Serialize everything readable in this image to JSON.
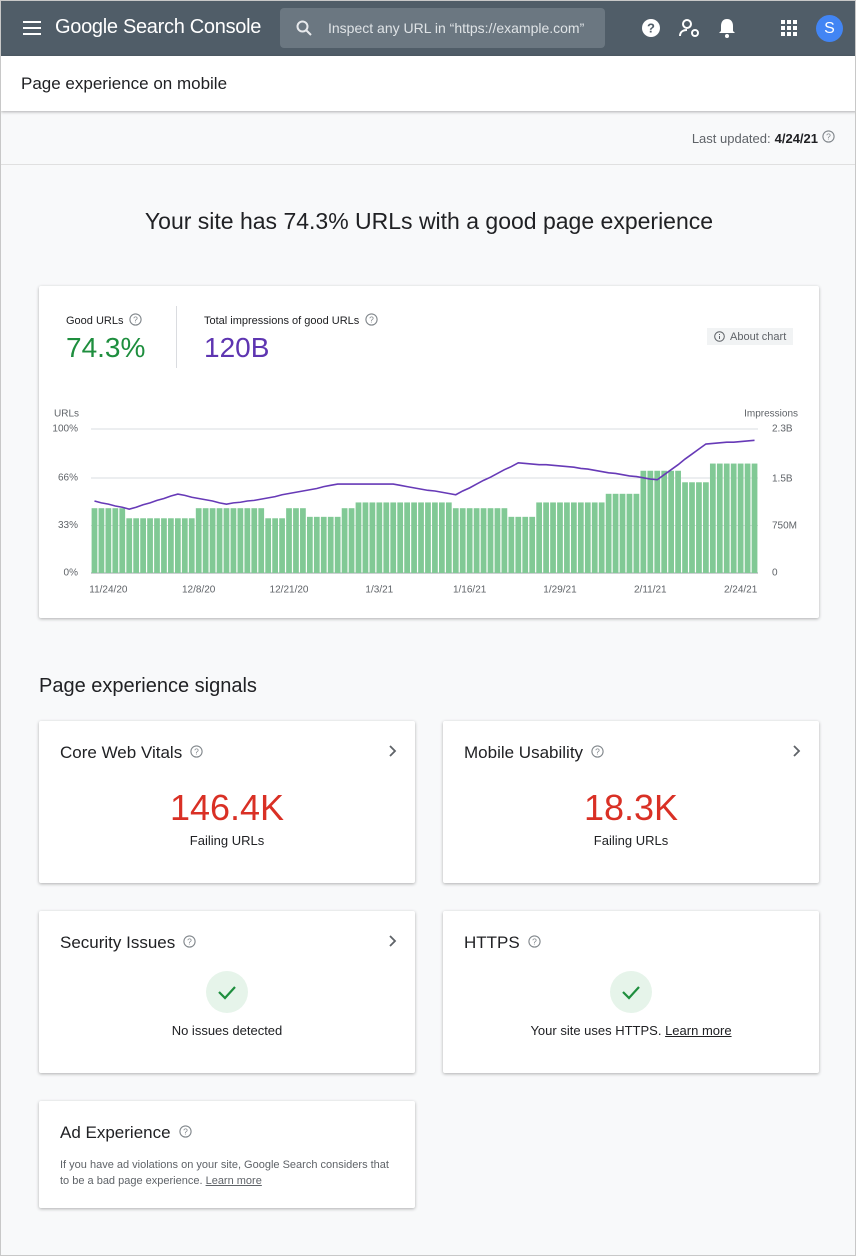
{
  "header": {
    "product": "Google Search Console",
    "search_placeholder": "Inspect any URL in “https://example.com”",
    "avatar": "S"
  },
  "page_title": "Page experience on mobile",
  "last_updated": {
    "label": "Last updated:",
    "date": "4/24/21"
  },
  "headline": "Your site has 74.3% URLs with a good page experience",
  "chart_card": {
    "good_urls_value": "74.3%",
    "impressions_value": "120B",
    "about": "About chart"
  },
  "chart_data": {
    "type": "bar",
    "y_label": "URLs",
    "y2_label": "Impressions",
    "categories": [
      null,
      null,
      "11/24/20",
      null,
      null,
      null,
      null,
      null,
      null,
      null,
      null,
      null,
      null,
      null,
      null,
      "12/8/20",
      null,
      null,
      null,
      null,
      null,
      null,
      null,
      null,
      null,
      null,
      null,
      null,
      "12/21/20",
      null,
      null,
      null,
      null,
      null,
      null,
      null,
      null,
      null,
      null,
      null,
      null,
      "1/3/21",
      null,
      null,
      null,
      null,
      null,
      null,
      null,
      null,
      null,
      null,
      null,
      null,
      "1/16/21",
      null,
      null,
      null,
      null,
      null,
      null,
      null,
      null,
      null,
      null,
      null,
      null,
      "1/29/21",
      null,
      null,
      null,
      null,
      null,
      null,
      null,
      null,
      null,
      null,
      null,
      null,
      "2/11/21",
      null,
      null,
      null,
      null,
      null,
      null,
      null,
      null,
      null,
      null,
      null,
      null,
      "2/24/21",
      null,
      null
    ],
    "series": [
      {
        "name": "Good URLs",
        "color": "#81c995",
        "values": [
          45,
          45,
          45,
          45,
          45,
          38,
          38,
          38,
          38,
          38,
          38,
          38,
          38,
          38,
          38,
          45,
          45,
          45,
          45,
          45,
          45,
          45,
          45,
          45,
          45,
          38,
          38,
          38,
          45,
          45,
          45,
          39,
          39,
          39,
          39,
          39,
          45,
          45,
          49,
          49,
          49,
          49,
          49,
          49,
          49,
          49,
          49,
          49,
          49,
          49,
          49,
          49,
          45,
          45,
          45,
          45,
          45,
          45,
          45,
          45,
          39,
          39,
          39,
          39,
          49,
          49,
          49,
          49,
          49,
          49,
          49,
          49,
          49,
          49,
          55,
          55,
          55,
          55,
          55,
          71,
          71,
          71,
          71,
          71,
          71,
          63,
          63,
          63,
          63,
          76,
          76,
          76,
          76,
          76,
          76,
          76
        ]
      },
      {
        "name": "Total impressions of good URLs",
        "color": "#673ab7",
        "type": "line",
        "axis": "y2",
        "values": [
          1.15,
          1.12,
          1.1,
          1.07,
          1.05,
          1.02,
          1.05,
          1.09,
          1.12,
          1.16,
          1.19,
          1.23,
          1.26,
          1.24,
          1.21,
          1.19,
          1.17,
          1.15,
          1.12,
          1.1,
          1.12,
          1.13,
          1.15,
          1.16,
          1.18,
          1.2,
          1.22,
          1.25,
          1.27,
          1.29,
          1.31,
          1.33,
          1.35,
          1.38,
          1.4,
          1.42,
          1.42,
          1.42,
          1.42,
          1.42,
          1.42,
          1.42,
          1.42,
          1.42,
          1.4,
          1.38,
          1.36,
          1.34,
          1.32,
          1.31,
          1.29,
          1.27,
          1.25,
          1.31,
          1.36,
          1.42,
          1.48,
          1.53,
          1.59,
          1.65,
          1.7,
          1.76,
          1.75,
          1.74,
          1.73,
          1.73,
          1.72,
          1.71,
          1.7,
          1.69,
          1.67,
          1.66,
          1.64,
          1.62,
          1.6,
          1.59,
          1.57,
          1.55,
          1.54,
          1.52,
          1.5,
          1.49,
          1.57,
          1.65,
          1.73,
          1.82,
          1.9,
          1.98,
          2.06,
          2.07,
          2.08,
          2.09,
          2.09,
          2.1,
          2.11,
          2.12
        ]
      }
    ],
    "ylim": [
      0,
      100
    ],
    "yticks": [
      {
        "value": 0,
        "label": "0%"
      },
      {
        "value": 33,
        "label": "33%"
      },
      {
        "value": 66,
        "label": "66%"
      },
      {
        "value": 100,
        "label": "100%"
      }
    ],
    "y2lim": [
      0,
      2.3
    ],
    "y2ticks": [
      0,
      {
        "value": 0.75,
        "label": "750M"
      },
      {
        "value": 1.5,
        "label": "1.5B"
      },
      {
        "value": 2.3,
        "label": "2.3B"
      }
    ],
    "grid": true
  },
  "signals": {
    "title": "Page experience signals",
    "cards": [
      {
        "title": "Core Web Vitals",
        "value": "146.4K",
        "caption": "Failing URLs"
      },
      {
        "title": "Mobile Usability",
        "value": "18.3K",
        "caption": "Failing URLs"
      },
      {
        "title": "Security Issues",
        "caption": "No issues detected"
      },
      {
        "title": "HTTPS",
        "caption": "Your site uses HTTPS.",
        "link": "Learn more"
      },
      {
        "title": "Ad Experience",
        "caption": "If you have ad violations on your site, Google Search considers that to be a bad page experience.",
        "link": "Learn more"
      }
    ]
  }
}
